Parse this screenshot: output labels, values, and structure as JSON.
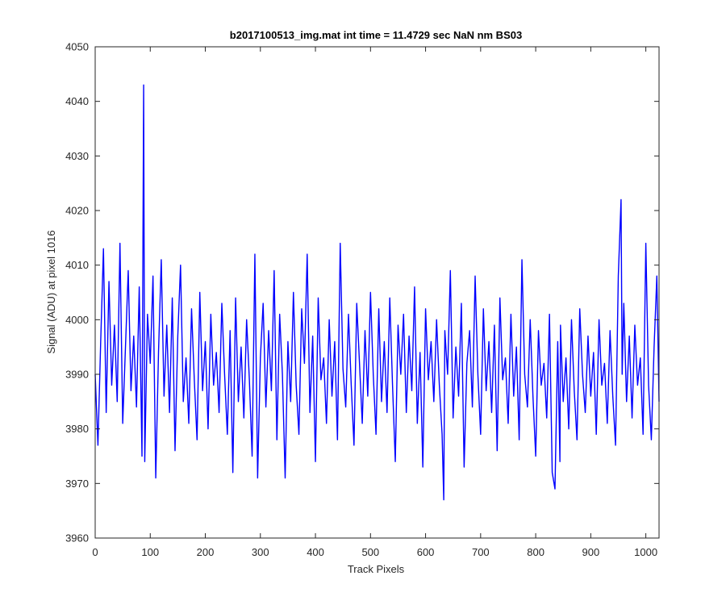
{
  "chart_data": {
    "type": "line",
    "title": "b2017100513_img.mat int time = 11.4729 sec  NaN nm BS03",
    "xlabel": "Track Pixels",
    "ylabel": "Signal (ADU) at pixel 1016",
    "xlim": [
      0,
      1024
    ],
    "ylim": [
      3960,
      4050
    ],
    "xticks": [
      0,
      100,
      200,
      300,
      400,
      500,
      600,
      700,
      800,
      900,
      1000
    ],
    "yticks": [
      3960,
      3970,
      3980,
      3990,
      4000,
      4010,
      4020,
      4030,
      4040,
      4050
    ],
    "grid": false,
    "line_color": "#0000ff",
    "series": [
      {
        "x": [
          0,
          5,
          10,
          15,
          20,
          25,
          30,
          35,
          40,
          45,
          50,
          55,
          60,
          65,
          70,
          75,
          80,
          85,
          88,
          90,
          95,
          100,
          105,
          110,
          115,
          120,
          125,
          130,
          135,
          140,
          145,
          150,
          155,
          160,
          165,
          170,
          175,
          180,
          185,
          190,
          195,
          200,
          205,
          210,
          215,
          220,
          225,
          230,
          235,
          240,
          245,
          250,
          255,
          260,
          265,
          270,
          275,
          280,
          285,
          290,
          295,
          300,
          305,
          310,
          315,
          320,
          325,
          330,
          335,
          340,
          345,
          350,
          355,
          360,
          365,
          370,
          375,
          380,
          385,
          390,
          395,
          400,
          405,
          410,
          415,
          420,
          425,
          430,
          435,
          440,
          445,
          450,
          455,
          460,
          465,
          470,
          475,
          480,
          485,
          490,
          495,
          500,
          505,
          510,
          515,
          520,
          525,
          530,
          535,
          540,
          545,
          550,
          555,
          560,
          565,
          570,
          575,
          580,
          585,
          590,
          595,
          600,
          605,
          610,
          615,
          620,
          625,
          630,
          633,
          635,
          640,
          645,
          650,
          655,
          660,
          665,
          670,
          675,
          680,
          685,
          690,
          695,
          700,
          705,
          710,
          715,
          720,
          725,
          730,
          735,
          740,
          745,
          750,
          755,
          760,
          765,
          770,
          775,
          780,
          785,
          790,
          795,
          800,
          805,
          810,
          815,
          820,
          825,
          830,
          835,
          840,
          844,
          845,
          850,
          855,
          860,
          865,
          870,
          875,
          880,
          885,
          890,
          895,
          900,
          905,
          910,
          915,
          920,
          925,
          930,
          935,
          940,
          945,
          950,
          955,
          957,
          960,
          965,
          970,
          975,
          980,
          985,
          990,
          995,
          1000,
          1005,
          1010,
          1015,
          1020,
          1024
        ],
        "y": [
          3990,
          3977,
          3996,
          4013,
          3983,
          4007,
          3988,
          3999,
          3985,
          4014,
          3981,
          3995,
          4009,
          3987,
          3997,
          3984,
          4006,
          3975,
          4043,
          3974,
          4001,
          3992,
          4008,
          3971,
          3994,
          4011,
          3986,
          3999,
          3983,
          4004,
          3976,
          3997,
          4010,
          3985,
          3993,
          3981,
          4002,
          3989,
          3978,
          4005,
          3987,
          3996,
          3980,
          4001,
          3988,
          3994,
          3983,
          4003,
          3990,
          3979,
          3998,
          3972,
          4004,
          3985,
          3995,
          3982,
          4000,
          3989,
          3975,
          4012,
          3971,
          3993,
          4003,
          3984,
          3998,
          3987,
          4009,
          3978,
          4001,
          3990,
          3971,
          3996,
          3985,
          4005,
          3988,
          3979,
          4002,
          3992,
          4012,
          3983,
          3997,
          3974,
          4004,
          3989,
          3993,
          3981,
          4000,
          3986,
          3996,
          3978,
          4014,
          3991,
          3984,
          4001,
          3988,
          3977,
          4003,
          3992,
          3981,
          3998,
          3986,
          4005,
          3990,
          3979,
          4002,
          3985,
          3996,
          3983,
          4004,
          3988,
          3974,
          3999,
          3990,
          4001,
          3983,
          3997,
          3987,
          4006,
          3981,
          3994,
          3973,
          4002,
          3989,
          3996,
          3985,
          4000,
          3988,
          3979,
          3967,
          3998,
          3990,
          4009,
          3982,
          3995,
          3986,
          4003,
          3973,
          3992,
          3998,
          3984,
          4008,
          3990,
          3979,
          4002,
          3987,
          3996,
          3983,
          3999,
          3976,
          4004,
          3989,
          3993,
          3981,
          4001,
          3986,
          3995,
          3978,
          4011,
          3990,
          3984,
          4000,
          3986,
          3975,
          3998,
          3988,
          3992,
          3982,
          4001,
          3972,
          3969,
          3996,
          3974,
          3999,
          3985,
          3993,
          3980,
          4000,
          3987,
          3978,
          4002,
          3990,
          3983,
          3997,
          3986,
          3994,
          3979,
          4000,
          3988,
          3992,
          3981,
          3998,
          3986,
          3977,
          4008,
          4022,
          3990,
          4003,
          3985,
          3997,
          3982,
          3999,
          3988,
          3993,
          3979,
          4014,
          3988,
          3978,
          3995,
          4008,
          3985
        ]
      }
    ]
  }
}
